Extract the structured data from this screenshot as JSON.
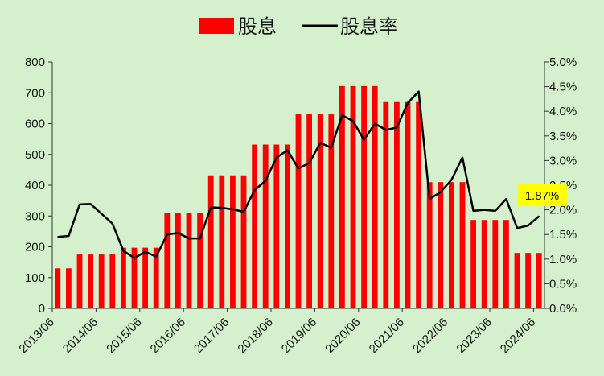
{
  "chart_data": {
    "type": "bar",
    "legend": {
      "placement": "top-center",
      "bar_label": "股息",
      "line_label": "股息率"
    },
    "colors": {
      "bars": "#ff0000",
      "line": "#000000",
      "annotation_bg": "#ffff00",
      "background": "#d4f0cc"
    },
    "left_axis": {
      "ylim": [
        0,
        800
      ],
      "ticks": [
        "0",
        "100",
        "200",
        "300",
        "400",
        "500",
        "600",
        "700",
        "800"
      ]
    },
    "right_axis": {
      "ylim": [
        0,
        5.0
      ],
      "ticks": [
        "0.0%",
        "0.5%",
        "1.0%",
        "1.5%",
        "2.0%",
        "2.5%",
        "3.0%",
        "3.5%",
        "4.0%",
        "4.5%",
        "5.0%"
      ]
    },
    "x_tick_labels": [
      "2013/06",
      "2014/06",
      "2015/06",
      "2016/06",
      "2017/06",
      "2018/06",
      "2019/06",
      "2020/06",
      "2021/06",
      "2022/06",
      "2023/06",
      "2024/06"
    ],
    "bar_values": [
      130,
      130,
      175,
      175,
      175,
      175,
      197,
      197,
      197,
      197,
      310,
      310,
      310,
      310,
      432,
      432,
      432,
      432,
      532,
      532,
      532,
      532,
      630,
      630,
      630,
      630,
      722,
      722,
      722,
      722,
      670,
      670,
      670,
      670,
      410,
      410,
      410,
      410,
      287,
      287,
      287,
      287,
      180,
      180,
      180
    ],
    "line_values": [
      1.45,
      1.47,
      2.11,
      2.12,
      1.92,
      1.72,
      1.17,
      1.02,
      1.15,
      1.05,
      1.5,
      1.53,
      1.42,
      1.42,
      2.05,
      2.04,
      2.01,
      1.96,
      2.4,
      2.59,
      3.06,
      3.21,
      2.84,
      2.95,
      3.36,
      3.26,
      3.92,
      3.8,
      3.42,
      3.75,
      3.62,
      3.67,
      4.17,
      4.4,
      2.22,
      2.36,
      2.61,
      3.06,
      1.98,
      2.0,
      1.98,
      2.22,
      1.63,
      1.68,
      1.87
    ],
    "annotation": {
      "text": "1.87%"
    }
  }
}
